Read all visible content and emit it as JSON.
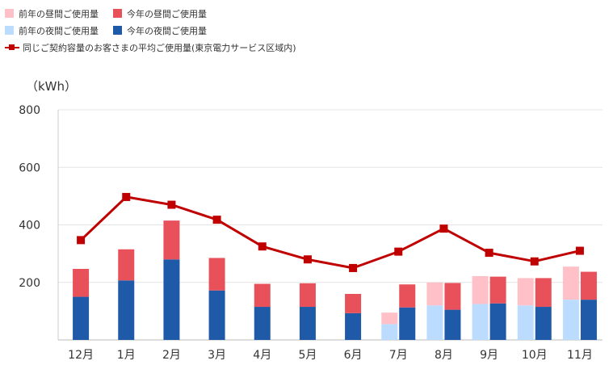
{
  "legend": {
    "prev_day": "前年の昼間ご使用量",
    "cur_day": "今年の昼間ご使用量",
    "prev_night": "前年の夜間ご使用量",
    "cur_night": "今年の夜間ご使用量",
    "avg": "同じご契約容量のお客さまの平均ご使用量(東京電力サービス区域内)"
  },
  "chart_data": {
    "type": "bar",
    "unit": "（kWh）",
    "categories": [
      "12月",
      "1月",
      "2月",
      "3月",
      "4月",
      "5月",
      "6月",
      "7月",
      "8月",
      "9月",
      "10月",
      "11月"
    ],
    "ylim": [
      0,
      800
    ],
    "yticks": [
      200,
      400,
      600,
      800
    ],
    "grid": true,
    "legend_position": "top-left",
    "colors": {
      "prev_day": "#ffc0c8",
      "cur_day": "#e8505a",
      "prev_night": "#bcdcff",
      "cur_night": "#1e5aa8",
      "avg": "#c00000"
    },
    "series": [
      {
        "key": "prev_night",
        "values": [
          null,
          null,
          null,
          null,
          null,
          null,
          null,
          55,
          120,
          125,
          120,
          140
        ]
      },
      {
        "key": "prev_day",
        "values": [
          null,
          null,
          null,
          null,
          null,
          null,
          null,
          40,
          80,
          97,
          95,
          115
        ]
      },
      {
        "key": "cur_night",
        "values": [
          150,
          207,
          280,
          172,
          115,
          115,
          93,
          113,
          105,
          127,
          115,
          140
        ]
      },
      {
        "key": "cur_day",
        "values": [
          97,
          108,
          135,
          113,
          80,
          82,
          67,
          80,
          93,
          93,
          100,
          97
        ]
      },
      {
        "key": "avg",
        "values": [
          347,
          497,
          470,
          418,
          325,
          280,
          250,
          307,
          387,
          303,
          273,
          310
        ]
      }
    ]
  }
}
